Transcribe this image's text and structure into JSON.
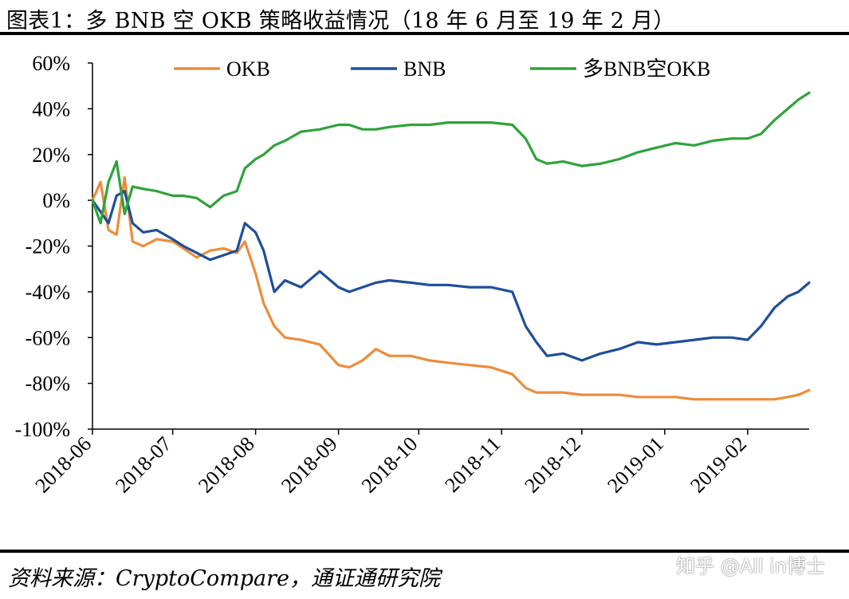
{
  "title": "图表1：多 BNB 空 OKB 策略收益情况（18 年 6 月至 19 年 2 月）",
  "source": "资料来源：CryptoCompare，通证通研究院",
  "watermark": "知乎 @All in博士",
  "colors": {
    "OKB": "#ED8C3A",
    "BNB": "#1F4E9A",
    "long_bnb_short_okb": "#2EA33A",
    "axis": "#000000"
  },
  "chart_data": {
    "type": "line",
    "title": "图表1：多 BNB 空 OKB 策略收益情况（18 年 6 月至 19 年 2 月）",
    "xlabel": "",
    "ylabel": "",
    "ylim": [
      -1.0,
      0.6
    ],
    "yticks": [
      0.6,
      0.4,
      0.2,
      0.0,
      -0.2,
      -0.4,
      -0.6,
      -0.8,
      -1.0
    ],
    "ytick_labels": [
      "60%",
      "40%",
      "20%",
      "0%",
      "-20%",
      "-40%",
      "-60%",
      "-80%",
      "-100%"
    ],
    "xlim": [
      "2018-06-01",
      "2019-02-24"
    ],
    "xticks": [
      "2018-06-01",
      "2018-07-01",
      "2018-08-01",
      "2018-09-01",
      "2018-10-01",
      "2018-11-01",
      "2018-12-01",
      "2019-01-01",
      "2019-02-01"
    ],
    "xtick_labels": [
      "2018-06",
      "2018-07",
      "2018-08",
      "2018-09",
      "2018-10",
      "2018-11",
      "2018-12",
      "2019-01",
      "2019-02"
    ],
    "grid": false,
    "legend_position": "top",
    "x": [
      "2018-06-01",
      "2018-06-04",
      "2018-06-07",
      "2018-06-10",
      "2018-06-13",
      "2018-06-16",
      "2018-06-20",
      "2018-06-25",
      "2018-07-01",
      "2018-07-05",
      "2018-07-10",
      "2018-07-15",
      "2018-07-20",
      "2018-07-25",
      "2018-07-28",
      "2018-08-01",
      "2018-08-04",
      "2018-08-08",
      "2018-08-12",
      "2018-08-18",
      "2018-08-25",
      "2018-09-01",
      "2018-09-05",
      "2018-09-10",
      "2018-09-15",
      "2018-09-20",
      "2018-09-28",
      "2018-10-05",
      "2018-10-12",
      "2018-10-20",
      "2018-10-28",
      "2018-11-05",
      "2018-11-10",
      "2018-11-14",
      "2018-11-18",
      "2018-11-24",
      "2018-12-01",
      "2018-12-08",
      "2018-12-15",
      "2018-12-22",
      "2018-12-29",
      "2019-01-05",
      "2019-01-12",
      "2019-01-19",
      "2019-01-26",
      "2019-02-01",
      "2019-02-06",
      "2019-02-11",
      "2019-02-16",
      "2019-02-20",
      "2019-02-24"
    ],
    "series": [
      {
        "name": "OKB",
        "color": "#ED8C3A",
        "values": [
          0.0,
          0.08,
          -0.13,
          -0.15,
          0.1,
          -0.18,
          -0.2,
          -0.17,
          -0.18,
          -0.21,
          -0.25,
          -0.22,
          -0.21,
          -0.23,
          -0.18,
          -0.32,
          -0.45,
          -0.55,
          -0.6,
          -0.61,
          -0.63,
          -0.72,
          -0.73,
          -0.7,
          -0.65,
          -0.68,
          -0.68,
          -0.7,
          -0.71,
          -0.72,
          -0.73,
          -0.76,
          -0.82,
          -0.84,
          -0.84,
          -0.84,
          -0.85,
          -0.85,
          -0.85,
          -0.86,
          -0.86,
          -0.86,
          -0.87,
          -0.87,
          -0.87,
          -0.87,
          -0.87,
          -0.87,
          -0.86,
          -0.85,
          -0.83
        ]
      },
      {
        "name": "BNB",
        "color": "#1F4E9A",
        "values": [
          0.0,
          -0.05,
          -0.1,
          0.02,
          0.04,
          -0.1,
          -0.14,
          -0.13,
          -0.17,
          -0.2,
          -0.23,
          -0.26,
          -0.24,
          -0.22,
          -0.1,
          -0.14,
          -0.22,
          -0.4,
          -0.35,
          -0.38,
          -0.31,
          -0.38,
          -0.4,
          -0.38,
          -0.36,
          -0.35,
          -0.36,
          -0.37,
          -0.37,
          -0.38,
          -0.38,
          -0.4,
          -0.55,
          -0.62,
          -0.68,
          -0.67,
          -0.7,
          -0.67,
          -0.65,
          -0.62,
          -0.63,
          -0.62,
          -0.61,
          -0.6,
          -0.6,
          -0.61,
          -0.55,
          -0.47,
          -0.42,
          -0.4,
          -0.36
        ]
      },
      {
        "name": "多BNB空OKB",
        "color": "#2EA33A",
        "values": [
          0.0,
          -0.1,
          0.08,
          0.17,
          -0.06,
          0.06,
          0.05,
          0.04,
          0.02,
          0.02,
          0.01,
          -0.03,
          0.02,
          0.04,
          0.14,
          0.18,
          0.2,
          0.24,
          0.26,
          0.3,
          0.31,
          0.33,
          0.33,
          0.31,
          0.31,
          0.32,
          0.33,
          0.33,
          0.34,
          0.34,
          0.34,
          0.33,
          0.27,
          0.18,
          0.16,
          0.17,
          0.15,
          0.16,
          0.18,
          0.21,
          0.23,
          0.25,
          0.24,
          0.26,
          0.27,
          0.27,
          0.29,
          0.35,
          0.4,
          0.44,
          0.47
        ]
      }
    ]
  }
}
